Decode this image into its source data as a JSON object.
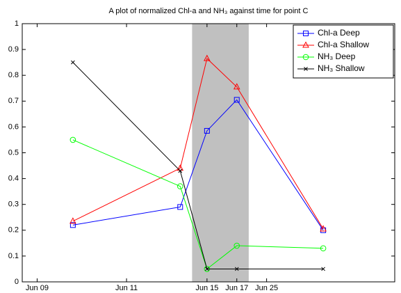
{
  "chart_data": {
    "type": "line",
    "title": "A plot of normalized Chl-a and NH₃ against time for point C",
    "x": [
      1.7,
      5.3,
      6.2,
      7.2,
      10.1
    ],
    "series": [
      {
        "name": "Chl-a Deep",
        "color": "#0000ff",
        "marker": "square",
        "values": [
          0.22,
          0.29,
          0.585,
          0.705,
          0.2
        ]
      },
      {
        "name": "Chl-a Shallow",
        "color": "#ff0000",
        "marker": "triangle",
        "values": [
          0.235,
          0.44,
          0.865,
          0.755,
          0.205
        ]
      },
      {
        "name": "NH₃ Deep",
        "color": "#00ff00",
        "marker": "circle",
        "values": [
          0.55,
          0.37,
          0.05,
          0.14,
          0.13
        ]
      },
      {
        "name": "NH₃ Shallow",
        "color": "#000000",
        "marker": "x",
        "values": [
          0.85,
          0.43,
          0.05,
          0.05,
          0.05
        ]
      }
    ],
    "xlim": [
      0,
      12.5
    ],
    "xticks": [
      {
        "value": 0.5,
        "label": "Jun 09"
      },
      {
        "value": 3.5,
        "label": "Jun 11"
      },
      {
        "value": 6.2,
        "label": "Jun 15"
      },
      {
        "value": 7.2,
        "label": "Jun 17"
      },
      {
        "value": 8.2,
        "label": "Jun 25"
      }
    ],
    "ylim": [
      0,
      1
    ],
    "yticks": [
      0,
      0.1,
      0.2,
      0.3,
      0.4,
      0.5,
      0.6,
      0.7,
      0.8,
      0.9,
      1
    ],
    "shade": [
      5.7,
      7.6
    ],
    "shade_color": "#c0c0c0",
    "legend": "upper right"
  }
}
